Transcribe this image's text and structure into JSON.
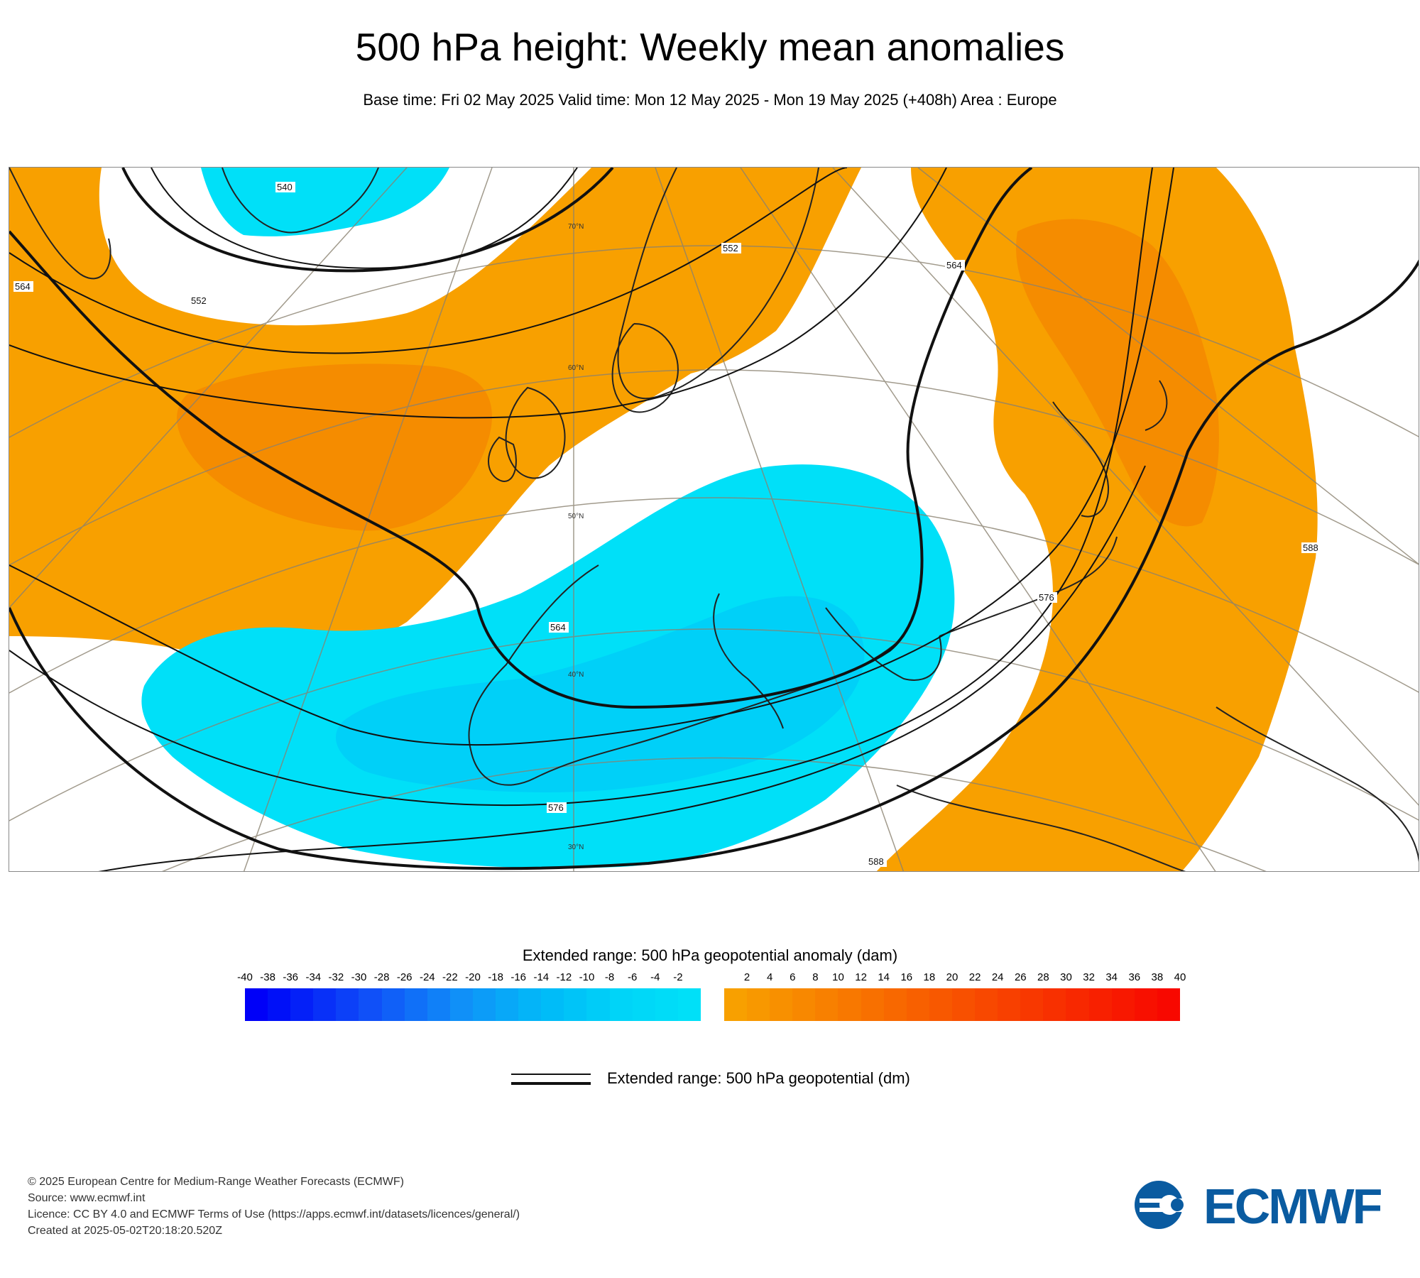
{
  "title": "500 hPa height: Weekly mean anomalies",
  "subtitle": "Base time: Fri 02 May 2025 Valid time: Mon 12 May 2025 - Mon 19 May 2025 (+408h) Area : Europe",
  "map": {
    "area": "Europe",
    "contour_labels": [
      "540",
      "552",
      "564",
      "564",
      "564",
      "576",
      "576",
      "588",
      "588",
      "552"
    ],
    "lat_labels": [
      "70°N",
      "60°N",
      "50°N",
      "40°N",
      "30°N"
    ],
    "colors": {
      "positive_anomaly": "#f8a000",
      "positive_anomaly_strong": "#f58c00",
      "negative_anomaly": "#00e0f8",
      "negative_anomaly_strong": "#00d0f8",
      "contour": "#111111",
      "coast": "#222222",
      "graticule": "#8a8270"
    }
  },
  "legend": {
    "anomaly_title": "Extended range: 500 hPa geopotential anomaly (dam)",
    "negative_ticks": [
      "-40",
      "-38",
      "-36",
      "-34",
      "-32",
      "-30",
      "-28",
      "-26",
      "-24",
      "-22",
      "-20",
      "-18",
      "-16",
      "-14",
      "-12",
      "-10",
      "-8",
      "-6",
      "-4",
      "-2"
    ],
    "positive_ticks": [
      "2",
      "4",
      "6",
      "8",
      "10",
      "12",
      "14",
      "16",
      "18",
      "20",
      "22",
      "24",
      "26",
      "28",
      "30",
      "32",
      "34",
      "36",
      "38",
      "40"
    ],
    "negative_colors": [
      "#0000f8",
      "#0010f8",
      "#0420f8",
      "#0830f8",
      "#0c40f8",
      "#1050f8",
      "#1060f8",
      "#1070f8",
      "#1080f8",
      "#1090f8",
      "#0c9cf8",
      "#08a8f8",
      "#04b4f8",
      "#00bcf8",
      "#00c4f8",
      "#00ccf8",
      "#00d4f8",
      "#00d8f8",
      "#00dcf8",
      "#00e0f8"
    ],
    "positive_colors": [
      "#f8a000",
      "#f89800",
      "#f89000",
      "#f88800",
      "#f88000",
      "#f87800",
      "#f87000",
      "#f86800",
      "#f86000",
      "#f85800",
      "#f85000",
      "#f84800",
      "#f84000",
      "#f83800",
      "#f83000",
      "#f82800",
      "#f82000",
      "#f81800",
      "#f81000",
      "#f80800"
    ],
    "line_label": "Extended range: 500 hPa geopotential (dm)"
  },
  "footer": {
    "line1": "© 2025 European Centre for Medium-Range Weather Forecasts (ECMWF)",
    "line2": "Source: www.ecmwf.int",
    "line3": "Licence: CC BY 4.0 and ECMWF Terms of Use (https://apps.ecmwf.int/datasets/licences/general/)",
    "line4": "Created at 2025-05-02T20:18:20.520Z"
  },
  "logo": {
    "text": "ECMWF",
    "color": "#0a5ba0"
  }
}
